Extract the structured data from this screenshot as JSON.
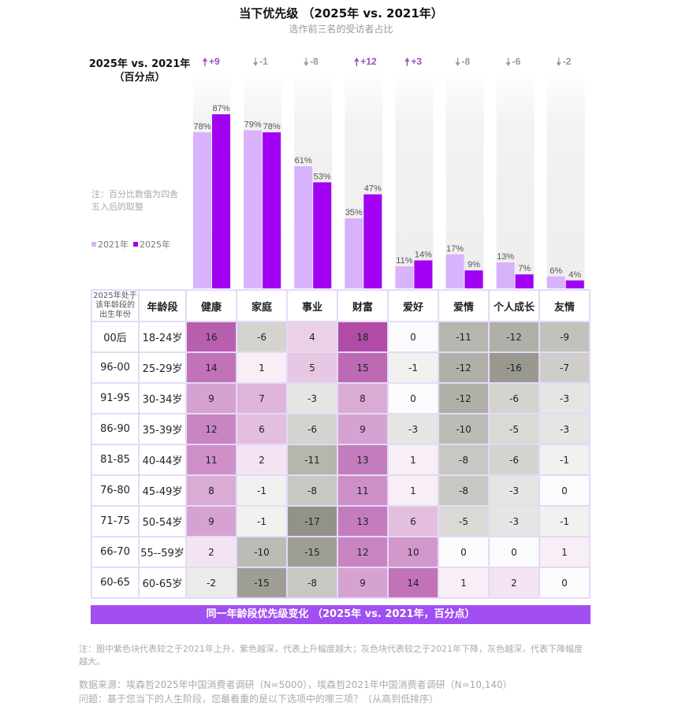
{
  "title": "当下优先级 （2025年 vs. 2021年）",
  "subtitle": "选作前三名的受访者占比",
  "axis_label_line1": "2025年 vs. 2021年",
  "axis_label_line2": "（百分点）",
  "note_rounding": "注：百分比数值为四舍五入后的取整",
  "legend": [
    {
      "label": "2021年",
      "color": "#d8b2fb"
    },
    {
      "label": "2025年",
      "color": "#a100f2"
    }
  ],
  "colors": {
    "up": "#a14fbf",
    "down": "#999999",
    "column_bg": "#eeeeee",
    "header_bar": "#a14ff1"
  },
  "chart_data": [
    {
      "type": "bar",
      "title": "当下优先级 （2025年 vs. 2021年）",
      "subtitle": "选作前三名的受访者占比",
      "categories": [
        "健康",
        "家庭",
        "事业",
        "财富",
        "爱好",
        "爱情",
        "个人成长",
        "友情"
      ],
      "series": [
        {
          "name": "2021年",
          "values": [
            78,
            79,
            61,
            35,
            11,
            17,
            13,
            6
          ]
        },
        {
          "name": "2025年",
          "values": [
            87,
            78,
            53,
            47,
            14,
            9,
            7,
            4
          ]
        }
      ],
      "value_labels": {
        "2021年": [
          "78%",
          "79%",
          "61%",
          "35%",
          "11%",
          "17%",
          "13%",
          "6%"
        ],
        "2025年": [
          "87%",
          "78%",
          "53%",
          "47%",
          "14%",
          "9%",
          "7%",
          "4%"
        ]
      },
      "change_labels": [
        "+9",
        "-1",
        "-8",
        "+12",
        "+3",
        "-8",
        "-6",
        "-2"
      ],
      "change_direction": [
        "up",
        "down",
        "down",
        "up",
        "up",
        "down",
        "down",
        "down"
      ],
      "ylabel": "2025年 vs. 2021年（百分点）",
      "ylim": [
        0,
        100
      ],
      "legend_position": "left"
    },
    {
      "type": "heatmap",
      "title": "同一年龄段优先级变化（2025年 vs. 2021年，百分点）",
      "row_header_1": "2025年处于该年龄段的出生年份",
      "row_header_2": "年龄段",
      "columns": [
        "健康",
        "家庭",
        "事业",
        "财富",
        "爱好",
        "爱情",
        "个人成长",
        "友情"
      ],
      "rows": [
        {
          "birth": "00后",
          "age": "18-24岁",
          "values": [
            16,
            -6,
            4,
            18,
            0,
            -11,
            -12,
            -9
          ]
        },
        {
          "birth": "96-00",
          "age": "25-29岁",
          "values": [
            14,
            1,
            5,
            15,
            -1,
            -12,
            -16,
            -7
          ]
        },
        {
          "birth": "91-95",
          "age": "30-34岁",
          "values": [
            9,
            7,
            -3,
            8,
            0,
            -12,
            -6,
            -3
          ]
        },
        {
          "birth": "86-90",
          "age": "35-39岁",
          "values": [
            12,
            6,
            -6,
            9,
            -3,
            -10,
            -5,
            -3
          ]
        },
        {
          "birth": "81-85",
          "age": "40-44岁",
          "values": [
            11,
            2,
            -11,
            13,
            1,
            -8,
            -6,
            -1
          ]
        },
        {
          "birth": "76-80",
          "age": "45-49岁",
          "values": [
            8,
            -1,
            -8,
            11,
            1,
            -8,
            -3,
            0
          ]
        },
        {
          "birth": "71-75",
          "age": "50-54岁",
          "values": [
            9,
            -1,
            -17,
            13,
            6,
            -5,
            -3,
            -1
          ]
        },
        {
          "birth": "66-70",
          "age": "55--59岁",
          "values": [
            2,
            -10,
            -15,
            12,
            10,
            0,
            0,
            1
          ]
        },
        {
          "birth": "60-65",
          "age": "60-65岁",
          "values": [
            -2,
            -15,
            -8,
            9,
            14,
            1,
            2,
            0
          ]
        }
      ],
      "color_scale": "purple = increase (darker = larger), gray = decrease (darker = larger)"
    }
  ],
  "table_header_birth": "2025年处于该年龄段的出生年份",
  "table_header_age": "年龄段",
  "footer_bar": "同一年龄段优先级变化 （2025年 vs. 2021年，百分点）",
  "footnote": "注：图中紫色块代表较之于2021年上升，紫色越深，代表上升幅度越大；灰色块代表较之于2021年下降，灰色越深，代表下降幅度越大。",
  "source_line1": "数据来源：埃森哲2025年中国消费者调研（N=5000），埃森哲2021年中国消费者调研（N=10,140）",
  "source_line2": "问题：基于您当下的人生阶段，您最看重的是以下选项中的哪三项？（从高到低排序）"
}
